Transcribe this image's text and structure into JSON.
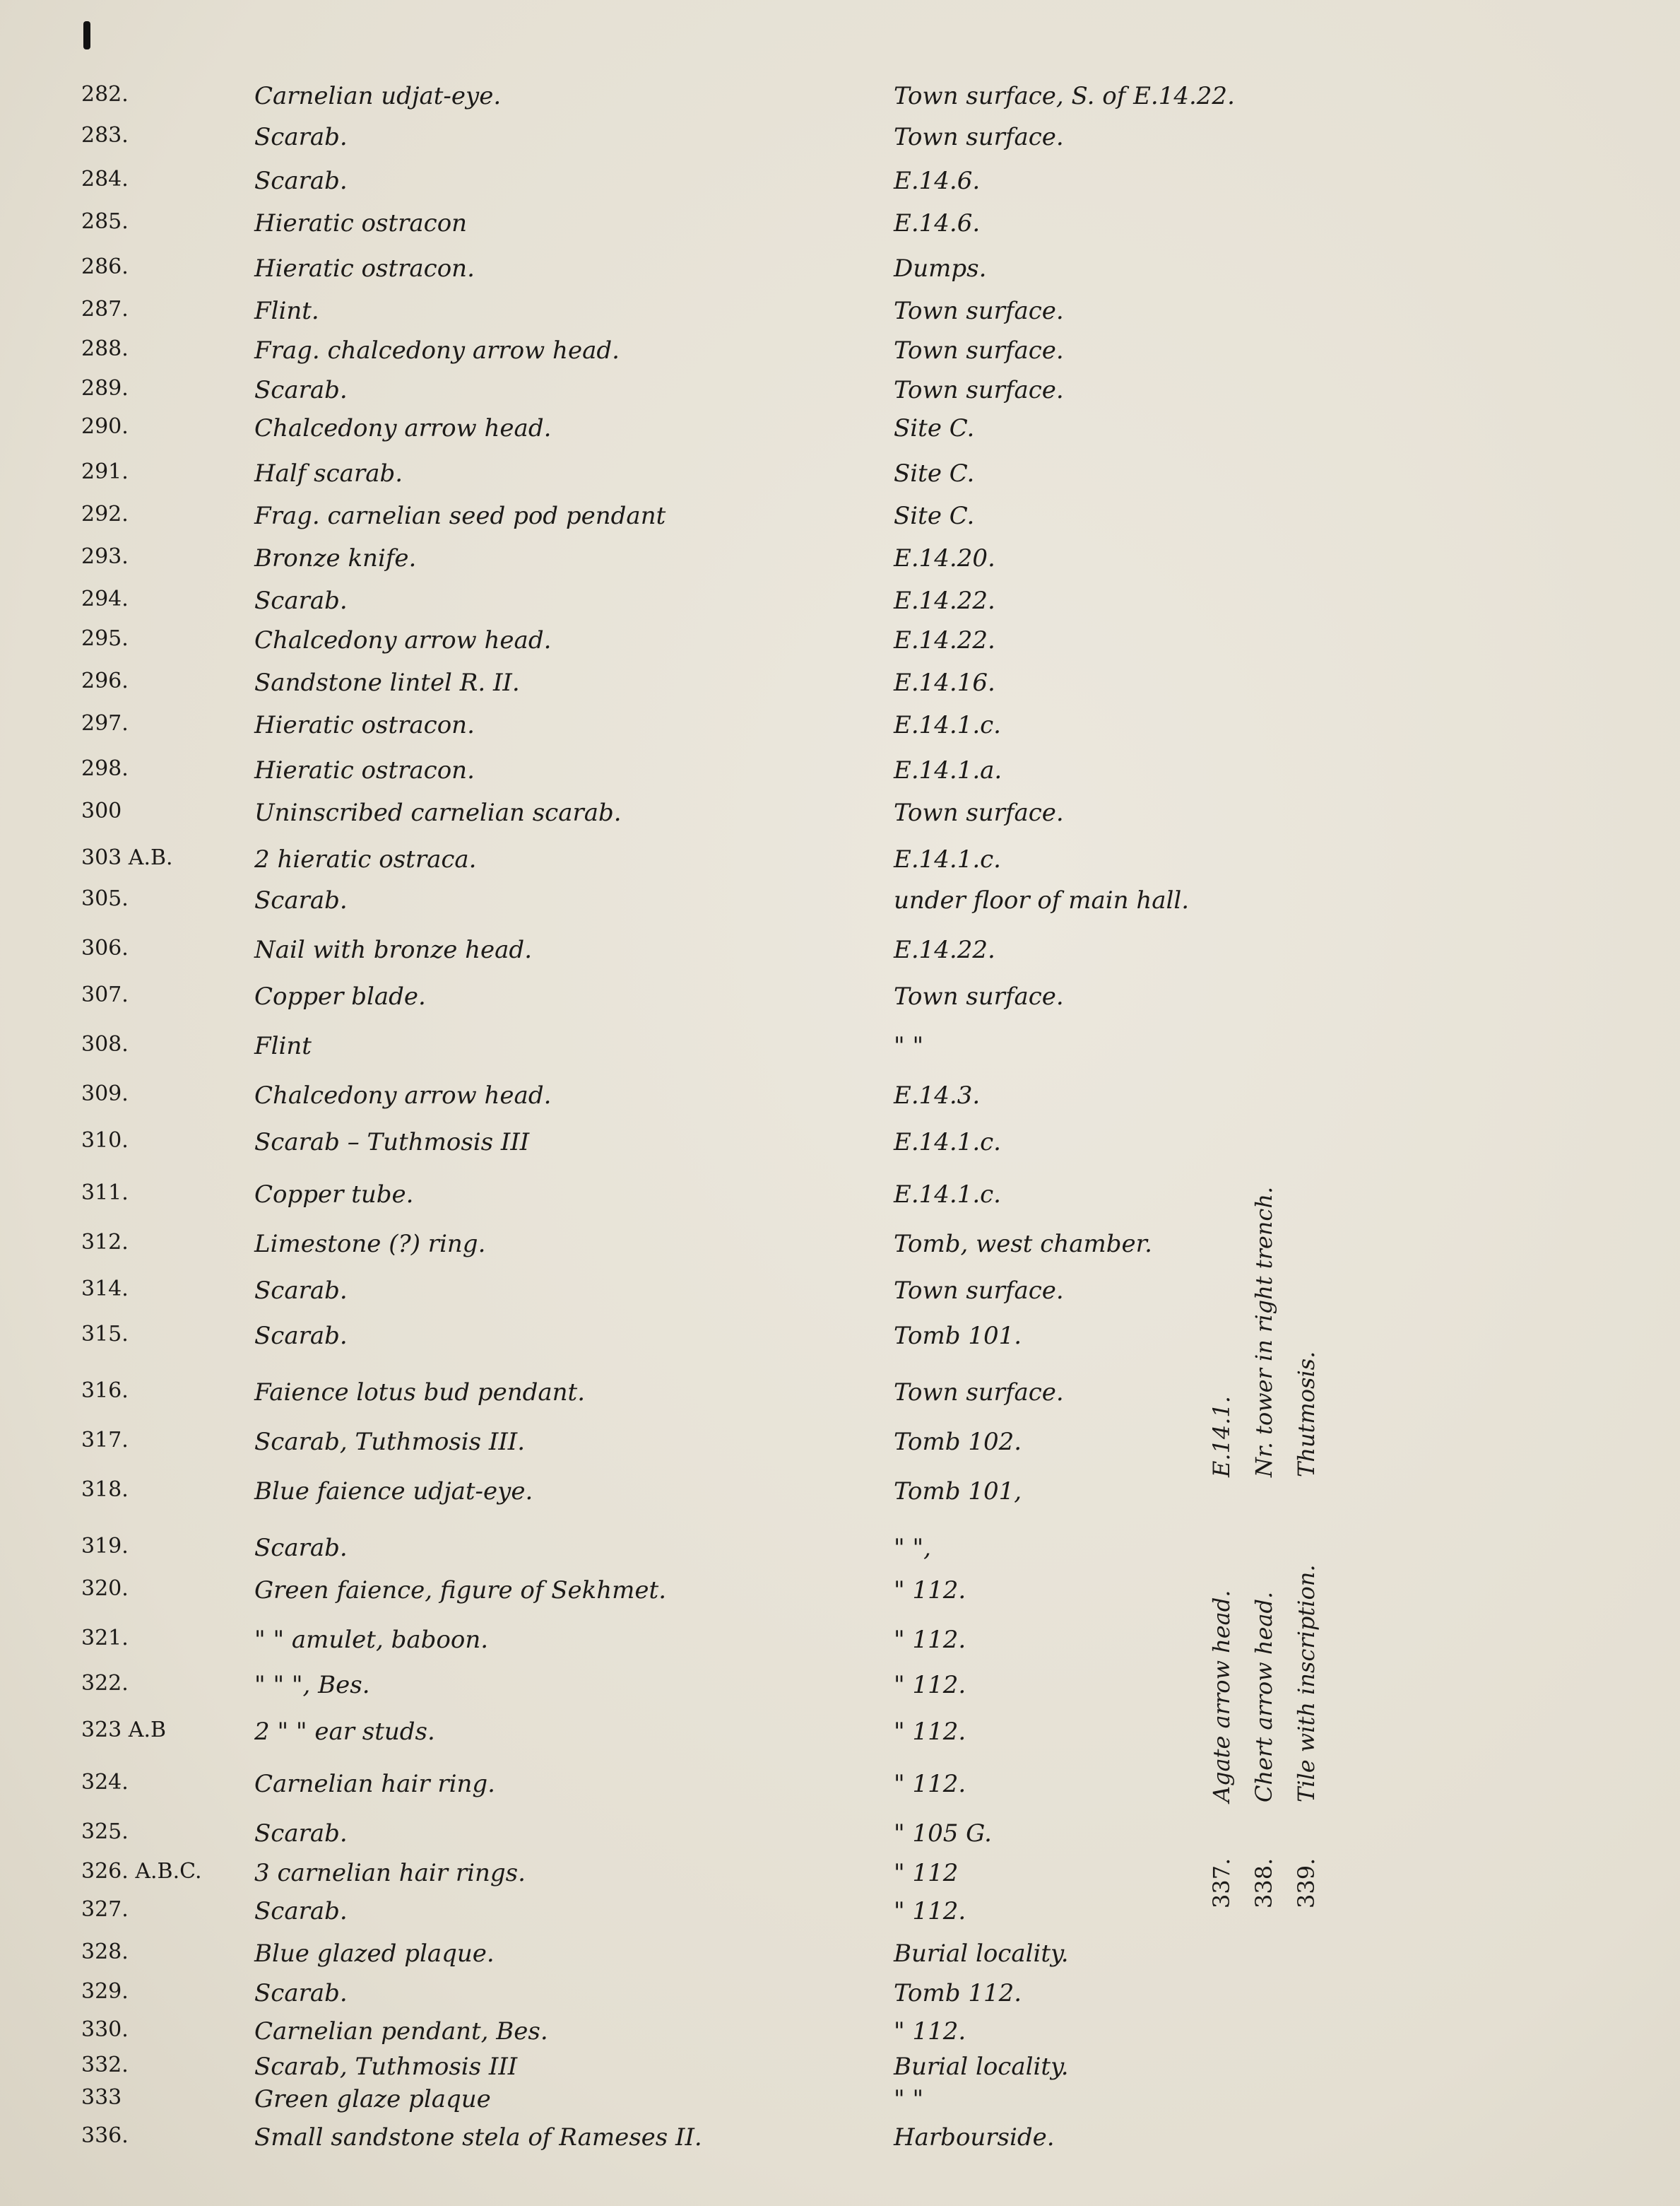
{
  "entries": [
    {
      "num": "282.",
      "desc": "Carnelian udjat-eye.",
      "loc": "Town surface, S. of E.14.22."
    },
    {
      "num": "283.",
      "desc": "Scarab.",
      "loc": "Town surface."
    },
    {
      "num": "284.",
      "desc": "Scarab.",
      "loc": "E.14.6."
    },
    {
      "num": "285.",
      "desc": "Hieratic ostracon",
      "loc": "E.14.6."
    },
    {
      "num": "286.",
      "desc": "Hieratic ostracon.",
      "loc": "Dumps."
    },
    {
      "num": "287.",
      "desc": "Flint.",
      "loc": "Town surface."
    },
    {
      "num": "288.",
      "desc": "Frag. chalcedony arrow head.",
      "loc": "Town surface."
    },
    {
      "num": "289.",
      "desc": "Scarab.",
      "loc": "Town surface."
    },
    {
      "num": "290.",
      "desc": "Chalcedony arrow head.",
      "loc": "Site C."
    },
    {
      "num": "291.",
      "desc": "Half scarab.",
      "loc": "Site C."
    },
    {
      "num": "292.",
      "desc": "Frag. carnelian seed pod pendant",
      "loc": "Site C."
    },
    {
      "num": "293.",
      "desc": "Bronze knife.",
      "loc": "E.14.20."
    },
    {
      "num": "294.",
      "desc": "Scarab.",
      "loc": "E.14.22."
    },
    {
      "num": "295.",
      "desc": "Chalcedony arrow head.",
      "loc": "E.14.22."
    },
    {
      "num": "296.",
      "desc": "Sandstone lintel R. II.",
      "loc": "E.14.16."
    },
    {
      "num": "297.",
      "desc": "Hieratic ostracon.",
      "loc": "E.14.1.c."
    },
    {
      "num": "298.",
      "desc": "Hieratic ostracon.",
      "loc": "E.14.1.a."
    },
    {
      "num": "300",
      "desc": "Uninscribed carnelian scarab.",
      "loc": "Town surface."
    },
    {
      "num": "303 A.B.",
      "desc": "2 hieratic ostraca.",
      "loc": "E.14.1.c."
    },
    {
      "num": "305.",
      "desc": "Scarab.",
      "loc": "under floor of main hall."
    },
    {
      "num": "306.",
      "desc": "Nail with bronze head.",
      "loc": "E.14.22."
    },
    {
      "num": "307.",
      "desc": "Copper blade.",
      "loc": "Town surface."
    },
    {
      "num": "308.",
      "desc": "Flint",
      "loc": "\"      \""
    },
    {
      "num": "309.",
      "desc": "Chalcedony arrow head.",
      "loc": "E.14.3."
    },
    {
      "num": "310.",
      "desc": "Scarab – Tuthmosis III",
      "loc": "E.14.1.c."
    },
    {
      "num": "311.",
      "desc": "Copper tube.",
      "loc": "E.14.1.c."
    },
    {
      "num": "312.",
      "desc": "Limestone (?) ring.",
      "loc": "Tomb, west chamber."
    },
    {
      "num": "314.",
      "desc": "Scarab.",
      "loc": "Town surface."
    },
    {
      "num": "315.",
      "desc": "Scarab.",
      "loc": "Tomb 101."
    },
    {
      "num": "316.",
      "desc": "Faience lotus bud pendant.",
      "loc": "Town surface."
    },
    {
      "num": "317.",
      "desc": "Scarab, Tuthmosis III.",
      "loc": "Tomb 102."
    },
    {
      "num": "318.",
      "desc": "Blue faience udjat-eye.",
      "loc": "Tomb 101,"
    },
    {
      "num": "319.",
      "desc": "Scarab.",
      "loc": "\"    \","
    },
    {
      "num": "320.",
      "desc": "Green faience, figure of Sekhmet.",
      "loc": "\"  112."
    },
    {
      "num": "321.",
      "desc": "\"    \"    amulet, baboon.",
      "loc": "\"  112."
    },
    {
      "num": "322.",
      "desc": "\"    \"    \", Bes.",
      "loc": "\"  112."
    },
    {
      "num": "323 A.B",
      "desc": "2 \"    \"    ear studs.",
      "loc": "\"  112."
    },
    {
      "num": "324.",
      "desc": "Carnelian hair ring.",
      "loc": "\"  112."
    },
    {
      "num": "325.",
      "desc": "Scarab.",
      "loc": "\"  105 G."
    },
    {
      "num": "326. A.B.C.",
      "desc": "3 carnelian hair rings.",
      "loc": "\"  112"
    },
    {
      "num": "327.",
      "desc": "Scarab.",
      "loc": "\"  112."
    },
    {
      "num": "328.",
      "desc": "Blue glazed plaque.",
      "loc": "Burial locality."
    },
    {
      "num": "329.",
      "desc": "Scarab.",
      "loc": "Tomb 112."
    },
    {
      "num": "330.",
      "desc": "Carnelian pendant, Bes.",
      "loc": "\"  112."
    },
    {
      "num": "332.",
      "desc": "Scarab, Tuthmosis III",
      "loc": "Burial locality."
    },
    {
      "num": "333",
      "desc": "Green glaze plaque",
      "loc": "\"      \""
    },
    {
      "num": "336.",
      "desc": "Small sandstone stela of Rameses II.",
      "loc": "Harbourside."
    }
  ],
  "side_entries": [
    {
      "num": "337.",
      "desc": "Agate arrow head.",
      "loc": "E.14.1."
    },
    {
      "num": "338.",
      "desc": "Chert arrow head.",
      "loc": "Nr. tower in right trench."
    },
    {
      "num": "339.",
      "desc": "Tile with inscription.",
      "loc": "Thutmosis."
    }
  ]
}
